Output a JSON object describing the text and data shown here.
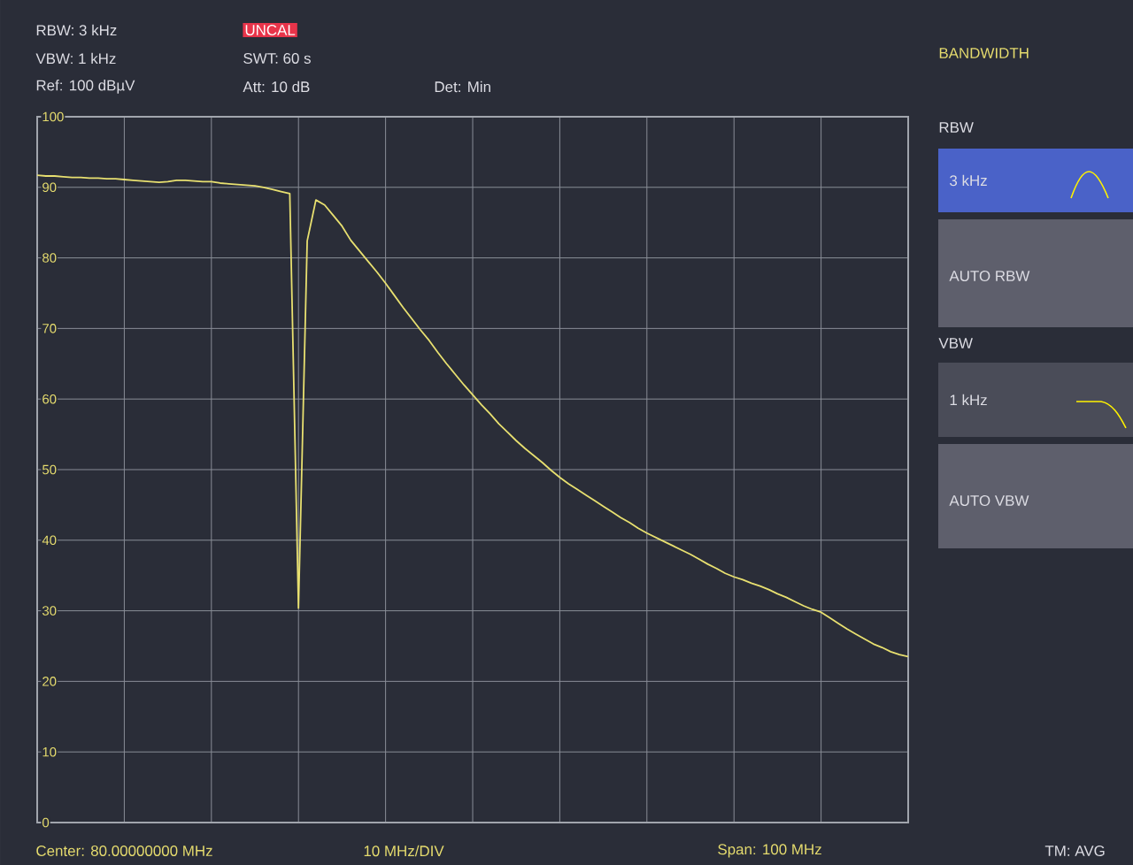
{
  "chart_data": {
    "type": "line",
    "categories": [
      null,
      null,
      null,
      null,
      null,
      null,
      null,
      null,
      null,
      null,
      null,
      null,
      null,
      null,
      null,
      null,
      null,
      null,
      null,
      null,
      null,
      null,
      null,
      null,
      null,
      null,
      null,
      null,
      null,
      null,
      null,
      null,
      null,
      null,
      null,
      null,
      null,
      null,
      null,
      null,
      null,
      null,
      null,
      null,
      null,
      null,
      null,
      null,
      null,
      null,
      null,
      null,
      null,
      null,
      null,
      null,
      null,
      null,
      null,
      null,
      null,
      null,
      null,
      null,
      null,
      null,
      null,
      null,
      null,
      null,
      null,
      null,
      null,
      null,
      null,
      null,
      null,
      null,
      null,
      null,
      null,
      null,
      null,
      null,
      null,
      null,
      null,
      null,
      null,
      null,
      null,
      null,
      null,
      null,
      null,
      null,
      null,
      null,
      null,
      null,
      null
    ],
    "series": [
      {
        "color": "#e8e070",
        "values": [
          91.7,
          91.6,
          91.6,
          91.5,
          91.4,
          91.4,
          91.3,
          91.3,
          91.2,
          91.2,
          91.1,
          91.0,
          90.9,
          90.8,
          90.7,
          90.8,
          91.0,
          91.0,
          90.9,
          90.8,
          90.8,
          90.6,
          90.5,
          90.4,
          90.3,
          90.2,
          90.0,
          89.7,
          89.4,
          89.1,
          30.4,
          82.4,
          88.2,
          87.5,
          86.0,
          84.5,
          82.5,
          81.0,
          79.5,
          78.0,
          76.4,
          74.7,
          73.0,
          71.4,
          69.8,
          68.3,
          66.6,
          65.0,
          63.5,
          62.0,
          60.6,
          59.2,
          57.9,
          56.5,
          55.3,
          54.1,
          53.0,
          52.0,
          51.0,
          49.9,
          48.9,
          48.0,
          47.2,
          46.4,
          45.6,
          44.8,
          44.0,
          43.2,
          42.5,
          41.7,
          41.0,
          40.4,
          39.8,
          39.2,
          38.6,
          38.0,
          37.3,
          36.6,
          36.0,
          35.3,
          34.8,
          34.4,
          33.9,
          33.5,
          33.0,
          32.4,
          31.9,
          31.3,
          30.7,
          30.2,
          29.8,
          29.0,
          28.2,
          27.4,
          26.7,
          26.0,
          25.3,
          24.8,
          24.2,
          23.8,
          23.5
        ]
      }
    ],
    "ylim": [
      0,
      100
    ],
    "yticks": [
      0,
      10,
      20,
      30,
      40,
      50,
      60,
      70,
      80,
      90,
      100
    ],
    "tick_labels": "y",
    "grid": true,
    "marker": "none",
    "line_style": "solid",
    "annotations": [
      "RBW: 3 kHz",
      "UNCAL",
      "VBW: 1 kHz",
      "SWT: 60 s",
      "Ref: 100 dBµV",
      "Att: 10 dB",
      "Det: Min",
      "Center: 80.00000000 MHz",
      "10 MHz/DIV",
      "Span: 100 MHz",
      "TM: AVG",
      "BANDWIDTH",
      "RBW",
      "3 kHz",
      "AUTO RBW",
      "VBW",
      "1 kHz",
      "AUTO VBW"
    ]
  }
}
